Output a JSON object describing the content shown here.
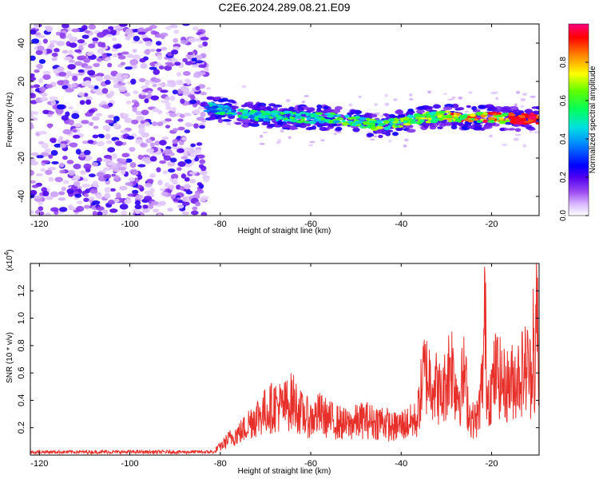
{
  "figure": {
    "title": "C2E6.2024.289.08.21.E09"
  },
  "colors": {
    "snr_line": "#e8302a",
    "axis": "#000000",
    "colormap": [
      "#ffffff",
      "#e0c8ff",
      "#b070f0",
      "#7000e0",
      "#0000ff",
      "#00c0ff",
      "#00ff80",
      "#80ff00",
      "#ffff00",
      "#ff8000",
      "#ff0000",
      "#ff0080"
    ]
  },
  "chart_data": [
    {
      "type": "heatmap",
      "name": "spectrogram",
      "title": "C2E6.2024.289.08.21.E09",
      "xlabel": "Height of straight line (km)",
      "ylabel": "Frequency (Hz)",
      "xlim": [
        -122,
        -9.5
      ],
      "ylim": [
        -50,
        50
      ],
      "x_ticks": [
        -120,
        -100,
        -80,
        -60,
        -40,
        -20
      ],
      "y_ticks": [
        -40,
        -20,
        0,
        20,
        40
      ],
      "colorbar": {
        "label": "Normalized spectral amplitude",
        "range": [
          0,
          1
        ],
        "ticks": [
          0.0,
          0.2,
          0.4,
          0.6,
          0.8
        ]
      },
      "regions": [
        {
          "x_range": [
            -122,
            -83
          ],
          "freq_range": [
            -50,
            50
          ],
          "amplitude": "low (0.0-0.15), broadband noise"
        },
        {
          "x_range": [
            -83,
            -9.5
          ],
          "freq_range": [
            -8,
            8
          ],
          "amplitude": "band centered near 0 Hz, increasing toward 1.0 near -12 km"
        }
      ],
      "band_center_hz": [
        [
          -82,
          6
        ],
        [
          -75,
          3
        ],
        [
          -70,
          2
        ],
        [
          -65,
          1.5
        ],
        [
          -60,
          1
        ],
        [
          -55,
          1
        ],
        [
          -50,
          -1
        ],
        [
          -45,
          -3
        ],
        [
          -40,
          -1
        ],
        [
          -35,
          1
        ],
        [
          -30,
          2
        ],
        [
          -25,
          1
        ],
        [
          -20,
          1
        ],
        [
          -15,
          0.5
        ],
        [
          -10,
          0.5
        ]
      ]
    },
    {
      "type": "line",
      "name": "snr",
      "xlabel": "Height of straight line (km)",
      "ylabel": "SNR (10 * v/v)",
      "ylabel_multiplier": "(x10",
      "ylabel_multiplier_exp": "4",
      "ylabel_multiplier_close": ")",
      "xlim": [
        -122,
        -9.5
      ],
      "ylim": [
        0,
        1.4
      ],
      "x_ticks": [
        -120,
        -100,
        -80,
        -60,
        -40,
        -20
      ],
      "y_ticks": [
        0.2,
        0.4,
        0.6,
        0.8,
        1.0,
        1.2
      ],
      "series": [
        {
          "x": [
            -122,
            -110,
            -100,
            -90,
            -82,
            -80,
            -78,
            -75,
            -73,
            -70,
            -68,
            -66,
            -64,
            -62,
            -60,
            -58,
            -56,
            -54,
            -52,
            -50,
            -48,
            -46,
            -44,
            -42,
            -40,
            -38,
            -36.5,
            -35,
            -33,
            -31,
            -30,
            -29,
            -28,
            -27,
            -26,
            -25,
            -24,
            -23,
            -22,
            -21.5,
            -21,
            -20,
            -19,
            -18,
            -17,
            -16,
            -15,
            -14,
            -13,
            -12,
            -11.2,
            -10.8,
            -10.4,
            -10,
            -9.6
          ],
          "y": [
            0.02,
            0.02,
            0.02,
            0.02,
            0.02,
            0.06,
            0.12,
            0.18,
            0.26,
            0.32,
            0.36,
            0.35,
            0.4,
            0.3,
            0.26,
            0.3,
            0.26,
            0.24,
            0.22,
            0.24,
            0.26,
            0.24,
            0.25,
            0.2,
            0.22,
            0.24,
            0.26,
            0.6,
            0.55,
            0.42,
            0.55,
            0.7,
            0.5,
            0.45,
            0.6,
            0.3,
            0.25,
            0.28,
            0.55,
            1.05,
            0.45,
            0.48,
            0.62,
            0.55,
            0.5,
            0.52,
            0.55,
            0.58,
            0.62,
            0.65,
            0.55,
            1.05,
            0.35,
            1.4,
            0.3
          ]
        }
      ]
    }
  ]
}
